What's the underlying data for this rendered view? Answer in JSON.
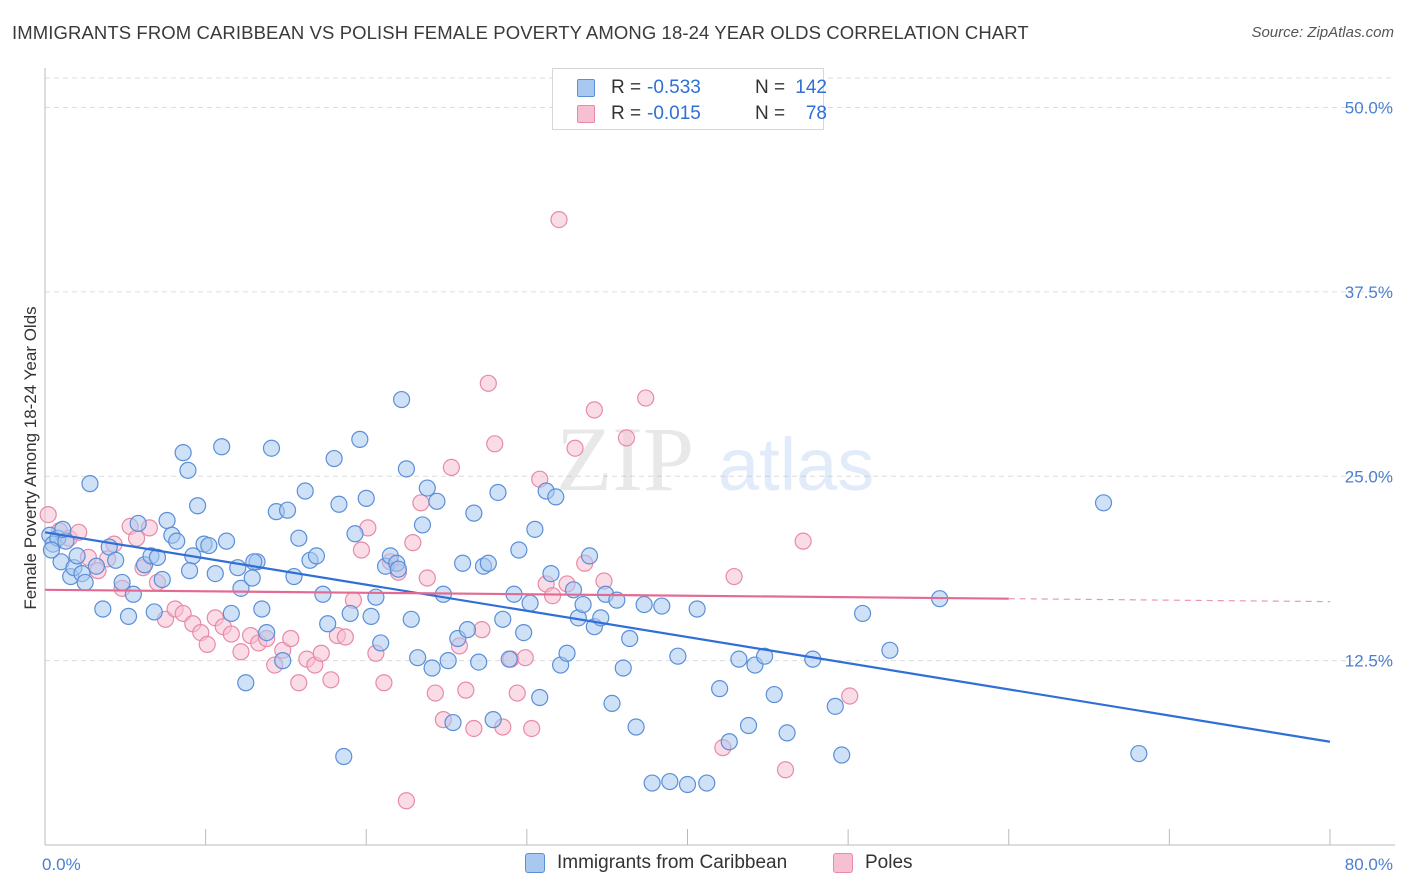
{
  "header": {
    "title": "IMMIGRANTS FROM CARIBBEAN VS POLISH FEMALE POVERTY AMONG 18-24 YEAR OLDS CORRELATION CHART",
    "source": "Source: ZipAtlas.com"
  },
  "legend": {
    "r_label": "R =",
    "n_label": "N =",
    "rows": [
      {
        "r": "-0.533",
        "n": "142"
      },
      {
        "r": "-0.015",
        "n": "78"
      }
    ]
  },
  "bottom_legend": {
    "series1": "Immigrants from Caribbean",
    "series2": "Poles"
  },
  "watermark": {
    "zip": "ZIP",
    "atlas": "atlas"
  },
  "colors": {
    "blue_fill": "#a8c8f0",
    "blue_stroke": "#5b8fd8",
    "blue_line": "#2f6fd6",
    "pink_fill": "#f6c0d2",
    "pink_stroke": "#e88aa8",
    "pink_line": "#e36b93",
    "axis_text": "#4a7fd1",
    "grid": "#dcdcdc"
  },
  "chart_data": {
    "type": "scatter",
    "title": "IMMIGRANTS FROM CARIBBEAN VS POLISH FEMALE POVERTY AMONG 18-24 YEAR OLDS CORRELATION CHART",
    "xlabel": "",
    "ylabel": "Female Poverty Among 18-24 Year Olds",
    "xlim": [
      0,
      80
    ],
    "ylim": [
      0,
      52
    ],
    "x_tick_labels": [
      "0.0%",
      "80.0%"
    ],
    "y_ticks": [
      12.5,
      25.0,
      37.5,
      50.0
    ],
    "y_tick_labels": [
      "12.5%",
      "25.0%",
      "37.5%",
      "50.0%"
    ],
    "grid": "horizontal dashed",
    "legend_position": "top-center",
    "series": [
      {
        "name": "Immigrants from Caribbean",
        "r": -0.533,
        "n": 142,
        "trend": {
          "x0": 0.0,
          "y0": 21.2,
          "x1": 80.0,
          "y1": 7.0
        },
        "points": [
          [
            0.3,
            21.0
          ],
          [
            0.5,
            20.4
          ],
          [
            0.8,
            20.8
          ],
          [
            1.0,
            19.2
          ],
          [
            1.3,
            20.6
          ],
          [
            1.6,
            18.2
          ],
          [
            1.8,
            18.8
          ],
          [
            2.0,
            19.6
          ],
          [
            2.3,
            18.4
          ],
          [
            2.8,
            24.5
          ],
          [
            3.2,
            18.9
          ],
          [
            3.6,
            16.0
          ],
          [
            4.0,
            20.2
          ],
          [
            4.4,
            19.3
          ],
          [
            4.8,
            17.8
          ],
          [
            5.2,
            15.5
          ],
          [
            5.5,
            17.0
          ],
          [
            5.8,
            21.8
          ],
          [
            6.2,
            19.0
          ],
          [
            6.6,
            19.6
          ],
          [
            7.0,
            19.5
          ],
          [
            7.3,
            18.0
          ],
          [
            7.6,
            22.0
          ],
          [
            7.9,
            21.0
          ],
          [
            8.2,
            20.6
          ],
          [
            8.6,
            26.6
          ],
          [
            8.9,
            25.4
          ],
          [
            9.2,
            19.6
          ],
          [
            9.5,
            23.0
          ],
          [
            9.9,
            20.4
          ],
          [
            10.2,
            20.3
          ],
          [
            10.6,
            18.4
          ],
          [
            11.0,
            27.0
          ],
          [
            11.3,
            20.6
          ],
          [
            11.6,
            15.7
          ],
          [
            12.0,
            18.8
          ],
          [
            12.2,
            17.4
          ],
          [
            12.5,
            11.0
          ],
          [
            12.9,
            18.1
          ],
          [
            13.2,
            19.2
          ],
          [
            13.5,
            16.0
          ],
          [
            13.8,
            14.4
          ],
          [
            14.1,
            26.9
          ],
          [
            14.4,
            22.6
          ],
          [
            14.8,
            12.5
          ],
          [
            15.1,
            22.7
          ],
          [
            15.5,
            18.2
          ],
          [
            15.8,
            20.8
          ],
          [
            16.2,
            24.0
          ],
          [
            16.5,
            19.3
          ],
          [
            16.9,
            19.6
          ],
          [
            17.3,
            17.0
          ],
          [
            17.6,
            15.0
          ],
          [
            18.0,
            26.2
          ],
          [
            18.3,
            23.1
          ],
          [
            18.6,
            6.0
          ],
          [
            19.0,
            15.7
          ],
          [
            19.3,
            21.1
          ],
          [
            19.6,
            27.5
          ],
          [
            20.0,
            23.5
          ],
          [
            20.3,
            15.5
          ],
          [
            20.6,
            16.8
          ],
          [
            20.9,
            13.7
          ],
          [
            21.2,
            18.9
          ],
          [
            21.5,
            19.6
          ],
          [
            21.9,
            19.1
          ],
          [
            22.2,
            30.2
          ],
          [
            22.5,
            25.5
          ],
          [
            22.8,
            15.3
          ],
          [
            23.2,
            12.7
          ],
          [
            23.5,
            21.7
          ],
          [
            23.8,
            24.2
          ],
          [
            24.1,
            12.0
          ],
          [
            24.4,
            23.3
          ],
          [
            24.8,
            17.0
          ],
          [
            25.1,
            12.5
          ],
          [
            25.4,
            8.3
          ],
          [
            25.7,
            14.0
          ],
          [
            26.0,
            19.1
          ],
          [
            26.3,
            14.6
          ],
          [
            26.7,
            22.5
          ],
          [
            27.0,
            12.4
          ],
          [
            27.3,
            18.9
          ],
          [
            27.6,
            19.1
          ],
          [
            27.9,
            8.5
          ],
          [
            28.2,
            23.9
          ],
          [
            28.5,
            15.3
          ],
          [
            28.9,
            12.6
          ],
          [
            29.2,
            17.0
          ],
          [
            29.5,
            20.0
          ],
          [
            29.8,
            14.4
          ],
          [
            30.2,
            16.4
          ],
          [
            30.5,
            21.4
          ],
          [
            30.8,
            10.0
          ],
          [
            31.2,
            24.0
          ],
          [
            31.5,
            18.4
          ],
          [
            31.8,
            23.6
          ],
          [
            32.1,
            12.2
          ],
          [
            32.5,
            13.0
          ],
          [
            32.9,
            17.3
          ],
          [
            33.2,
            15.4
          ],
          [
            33.5,
            16.3
          ],
          [
            33.9,
            19.6
          ],
          [
            34.2,
            14.8
          ],
          [
            34.6,
            15.4
          ],
          [
            34.9,
            17.0
          ],
          [
            35.3,
            9.6
          ],
          [
            35.6,
            16.6
          ],
          [
            36.0,
            12.0
          ],
          [
            36.4,
            14.0
          ],
          [
            36.8,
            8.0
          ],
          [
            37.3,
            16.3
          ],
          [
            37.8,
            4.2
          ],
          [
            38.4,
            16.2
          ],
          [
            38.9,
            4.3
          ],
          [
            39.4,
            12.8
          ],
          [
            40.0,
            4.1
          ],
          [
            40.6,
            16.0
          ],
          [
            41.2,
            4.2
          ],
          [
            42.0,
            10.6
          ],
          [
            42.6,
            7.0
          ],
          [
            43.2,
            12.6
          ],
          [
            43.8,
            8.1
          ],
          [
            44.2,
            12.2
          ],
          [
            44.8,
            12.8
          ],
          [
            45.4,
            10.2
          ],
          [
            46.2,
            7.6
          ],
          [
            47.8,
            12.6
          ],
          [
            49.2,
            9.4
          ],
          [
            49.6,
            6.1
          ],
          [
            50.9,
            15.7
          ],
          [
            52.6,
            13.2
          ],
          [
            55.7,
            16.7
          ],
          [
            65.9,
            23.2
          ],
          [
            68.1,
            6.2
          ],
          [
            0.4,
            20.0
          ],
          [
            1.1,
            21.4
          ],
          [
            2.5,
            17.8
          ],
          [
            6.8,
            15.8
          ],
          [
            9.0,
            18.6
          ],
          [
            13.0,
            19.2
          ],
          [
            22.0,
            18.7
          ]
        ]
      },
      {
        "name": "Poles",
        "r": -0.015,
        "n": 78,
        "trend": {
          "x0": 0.0,
          "y0": 17.3,
          "x1": 60.0,
          "y1": 16.7,
          "dashed_to_x": 80.0
        },
        "points": [
          [
            0.2,
            22.4
          ],
          [
            0.9,
            21.3
          ],
          [
            1.5,
            20.8
          ],
          [
            2.1,
            21.2
          ],
          [
            2.7,
            19.5
          ],
          [
            3.3,
            18.6
          ],
          [
            3.9,
            19.4
          ],
          [
            4.3,
            20.4
          ],
          [
            4.8,
            17.4
          ],
          [
            5.3,
            21.6
          ],
          [
            5.7,
            20.8
          ],
          [
            6.1,
            18.8
          ],
          [
            6.5,
            21.5
          ],
          [
            7.0,
            17.8
          ],
          [
            7.5,
            15.3
          ],
          [
            8.1,
            16.0
          ],
          [
            8.6,
            15.7
          ],
          [
            9.2,
            15.0
          ],
          [
            9.7,
            14.4
          ],
          [
            10.1,
            13.6
          ],
          [
            10.6,
            15.4
          ],
          [
            11.1,
            14.8
          ],
          [
            11.6,
            14.3
          ],
          [
            12.2,
            13.1
          ],
          [
            12.8,
            14.2
          ],
          [
            13.3,
            13.7
          ],
          [
            13.8,
            14.0
          ],
          [
            14.3,
            12.2
          ],
          [
            14.8,
            13.2
          ],
          [
            15.3,
            14.0
          ],
          [
            15.8,
            11.0
          ],
          [
            16.3,
            12.6
          ],
          [
            16.8,
            12.2
          ],
          [
            17.2,
            13.0
          ],
          [
            17.8,
            11.2
          ],
          [
            18.2,
            14.2
          ],
          [
            18.7,
            14.1
          ],
          [
            19.2,
            16.6
          ],
          [
            19.7,
            20.0
          ],
          [
            20.1,
            21.5
          ],
          [
            20.6,
            13.0
          ],
          [
            21.1,
            11.0
          ],
          [
            21.5,
            19.2
          ],
          [
            22.0,
            18.5
          ],
          [
            22.5,
            3.0
          ],
          [
            22.9,
            20.5
          ],
          [
            23.4,
            23.2
          ],
          [
            23.8,
            18.1
          ],
          [
            24.3,
            10.3
          ],
          [
            24.8,
            8.5
          ],
          [
            25.3,
            25.6
          ],
          [
            25.8,
            13.5
          ],
          [
            26.2,
            10.5
          ],
          [
            26.7,
            7.9
          ],
          [
            27.2,
            14.6
          ],
          [
            27.6,
            31.3
          ],
          [
            28.0,
            27.2
          ],
          [
            28.5,
            8.0
          ],
          [
            29.0,
            12.6
          ],
          [
            29.4,
            10.3
          ],
          [
            29.9,
            12.7
          ],
          [
            30.3,
            7.9
          ],
          [
            30.8,
            24.8
          ],
          [
            31.2,
            17.7
          ],
          [
            31.6,
            16.9
          ],
          [
            32.0,
            42.4
          ],
          [
            32.5,
            17.7
          ],
          [
            33.0,
            26.9
          ],
          [
            33.6,
            19.1
          ],
          [
            34.2,
            29.5
          ],
          [
            34.8,
            17.9
          ],
          [
            36.2,
            27.6
          ],
          [
            37.4,
            30.3
          ],
          [
            42.2,
            6.6
          ],
          [
            42.9,
            18.2
          ],
          [
            46.1,
            5.1
          ],
          [
            47.2,
            20.6
          ],
          [
            50.1,
            10.1
          ]
        ]
      }
    ]
  }
}
